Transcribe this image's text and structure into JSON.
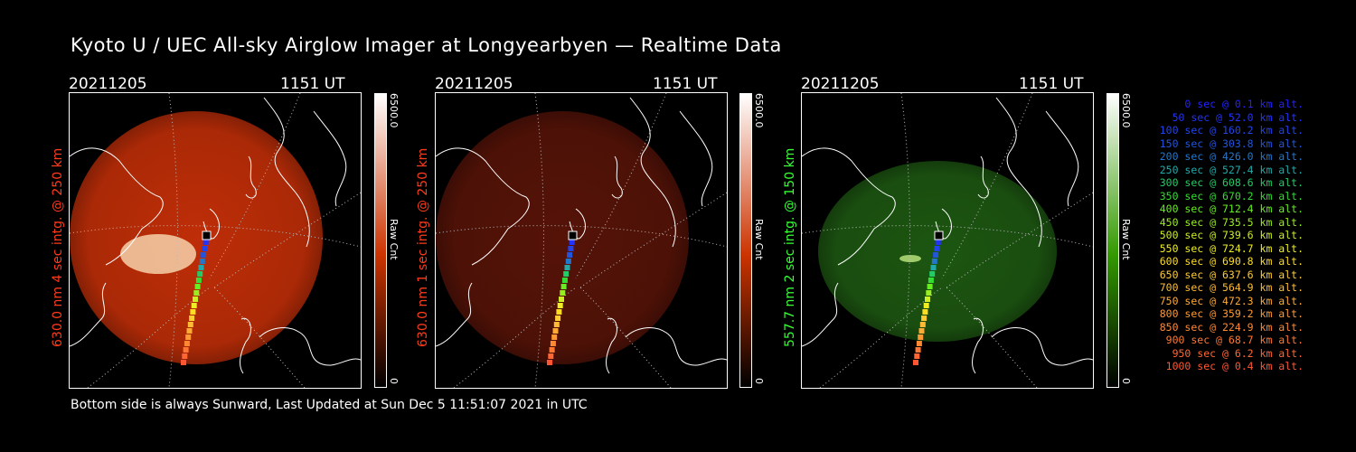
{
  "title": "Kyoto U / UEC All-sky Airglow Imager at Longyearbyen — Realtime Data",
  "footer": "Bottom side is always Sunward, Last Updated at Sun Dec  5 11:51:07 2021 in UTC",
  "panels": [
    {
      "date": "20211205",
      "time": "1151 UT",
      "ylabel": "630.0 nm 4 sec intg. @ 250 km",
      "label_color": "#ff3a1a",
      "cbar_max": "6500.0",
      "cbar_unit": "Raw Cnt",
      "cbar_min": "0",
      "image_color": "#c83008",
      "image_opacity": 0.95,
      "cbar_color": "#cc3300"
    },
    {
      "date": "20211205",
      "time": "1151 UT",
      "ylabel": "630.0 nm 1 sec intg. @ 250 km",
      "label_color": "#ff3a1a",
      "cbar_max": "6500.0",
      "cbar_unit": "Raw Cnt",
      "cbar_min": "0",
      "image_color": "#5a1408",
      "image_opacity": 0.95,
      "cbar_color": "#cc3300"
    },
    {
      "date": "20211205",
      "time": "1151 UT",
      "ylabel": "557.7 nm 2 sec intg. @ 150 km",
      "label_color": "#33ff33",
      "cbar_max": "6500.0",
      "cbar_unit": "Raw Cnt",
      "cbar_min": "0",
      "image_color": "#1e5a12",
      "image_opacity": 0.95,
      "cbar_color": "#339900"
    }
  ],
  "trajectory": [
    {
      "t": "0 sec",
      "alt": "0.1 km alt.",
      "color": "#2222ff"
    },
    {
      "t": "50 sec",
      "alt": "52.0 km alt.",
      "color": "#2233ff"
    },
    {
      "t": "100 sec",
      "alt": "160.2 km alt.",
      "color": "#2244ee"
    },
    {
      "t": "150 sec",
      "alt": "303.8 km alt.",
      "color": "#2255dd"
    },
    {
      "t": "200 sec",
      "alt": "426.0 km alt.",
      "color": "#2277cc"
    },
    {
      "t": "250 sec",
      "alt": "527.4 km alt.",
      "color": "#22aaaa"
    },
    {
      "t": "300 sec",
      "alt": "608.6 km alt.",
      "color": "#22cc66"
    },
    {
      "t": "350 sec",
      "alt": "670.2 km alt.",
      "color": "#33dd33"
    },
    {
      "t": "400 sec",
      "alt": "712.4 km alt.",
      "color": "#66ee22"
    },
    {
      "t": "450 sec",
      "alt": "735.5 km alt.",
      "color": "#99ee22"
    },
    {
      "t": "500 sec",
      "alt": "739.6 km alt.",
      "color": "#ccee22"
    },
    {
      "t": "550 sec",
      "alt": "724.7 km alt.",
      "color": "#eeee22"
    },
    {
      "t": "600 sec",
      "alt": "690.8 km alt.",
      "color": "#ffdd22"
    },
    {
      "t": "650 sec",
      "alt": "637.6 km alt.",
      "color": "#ffcc33"
    },
    {
      "t": "700 sec",
      "alt": "564.9 km alt.",
      "color": "#ffbb33"
    },
    {
      "t": "750 sec",
      "alt": "472.3 km alt.",
      "color": "#ffaa33"
    },
    {
      "t": "800 sec",
      "alt": "359.2 km alt.",
      "color": "#ff9933"
    },
    {
      "t": "850 sec",
      "alt": "224.9 km alt.",
      "color": "#ff8833"
    },
    {
      "t": "900 sec",
      "alt": "68.7 km alt.",
      "color": "#ff7733"
    },
    {
      "t": "950 sec",
      "alt": "6.2 km alt.",
      "color": "#ff6633"
    },
    {
      "t": "1000 sec",
      "alt": "0.4 km alt.",
      "color": "#ff5533"
    }
  ]
}
